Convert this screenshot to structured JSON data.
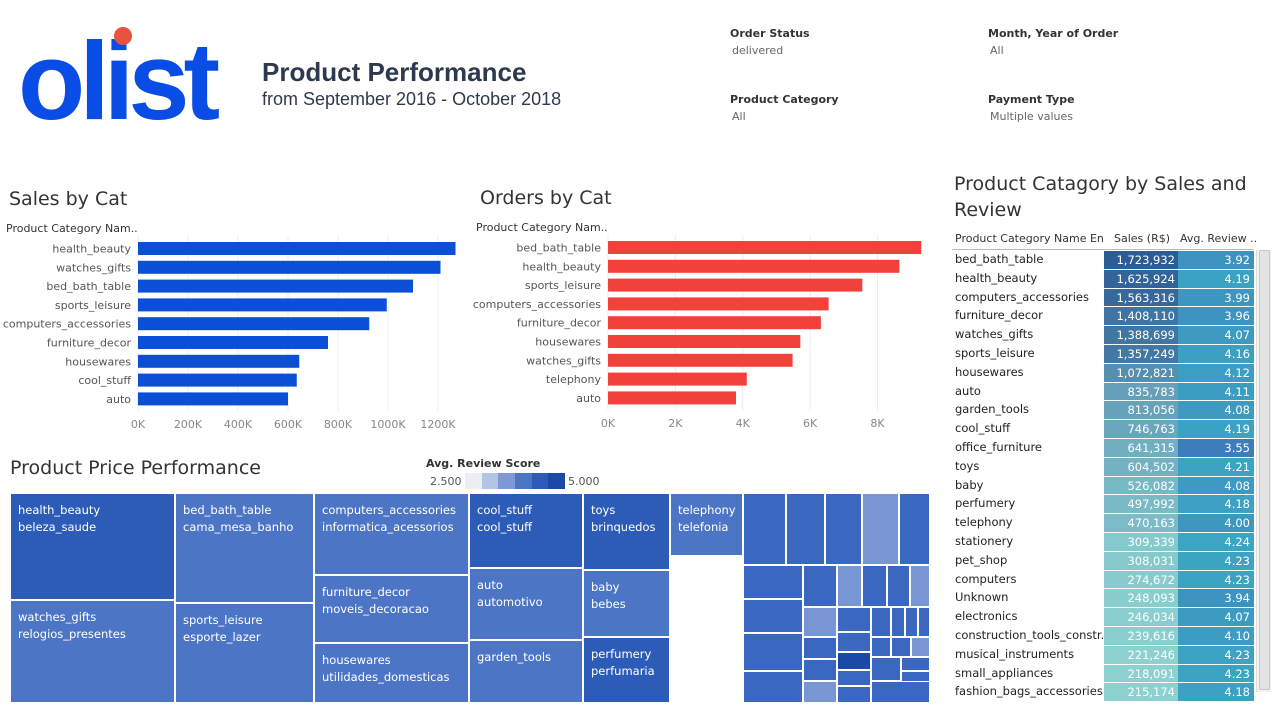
{
  "brand": {
    "logo_text": "olist",
    "logo_color": "#0a4de6",
    "dot_color": "#e8533f"
  },
  "header": {
    "title": "Product Performance",
    "subtitle": "from September 2016 - October 2018"
  },
  "filters": [
    {
      "label": "Order Status",
      "value": "delivered"
    },
    {
      "label": "Month, Year of Order",
      "value": "All"
    },
    {
      "label": "Product Category",
      "value": "All"
    },
    {
      "label": "Payment Type",
      "value": "Multiple values"
    }
  ],
  "chart_data": [
    {
      "type": "bar",
      "orientation": "horizontal",
      "title": "Sales by Cat",
      "ylabel": "Product Category Nam..",
      "categories": [
        "health_beauty",
        "watches_gifts",
        "bed_bath_table",
        "sports_leisure",
        "computers_accessories",
        "furniture_decor",
        "housewares",
        "cool_stuff",
        "auto"
      ],
      "values": [
        1270000,
        1210000,
        1100000,
        995000,
        925000,
        760000,
        645000,
        635000,
        600000
      ],
      "xlim": [
        0,
        1300000
      ],
      "ticks": [
        0,
        200000,
        400000,
        600000,
        800000,
        1000000,
        1200000
      ],
      "tick_labels": [
        "0K",
        "200K",
        "400K",
        "600K",
        "800K",
        "1000K",
        "1200K"
      ],
      "grid": true,
      "color": "#0a4fd6"
    },
    {
      "type": "bar",
      "orientation": "horizontal",
      "title": "Orders by Cat",
      "ylabel": "Product Category Nam..",
      "categories": [
        "bed_bath_table",
        "health_beauty",
        "sports_leisure",
        "computers_accessories",
        "furniture_decor",
        "housewares",
        "watches_gifts",
        "telephony",
        "auto"
      ],
      "values": [
        9300,
        8650,
        7550,
        6550,
        6320,
        5710,
        5480,
        4120,
        3800
      ],
      "xlim": [
        0,
        9500
      ],
      "ticks": [
        0,
        2000,
        4000,
        6000,
        8000
      ],
      "tick_labels": [
        "0K",
        "2K",
        "4K",
        "6K",
        "8K"
      ],
      "grid": true,
      "color": "#f2413a"
    },
    {
      "type": "treemap",
      "title": "Product Price Performance",
      "color_legend": {
        "title": "Avg. Review Score",
        "min": "2.500",
        "max": "5.000",
        "colors": [
          "#eceef2",
          "#b3c4e4",
          "#7e9ad6",
          "#4d75c6",
          "#2c5cb7",
          "#1c48a8"
        ]
      },
      "nodes": [
        {
          "en": "health_beauty",
          "pt": "beleza_saude",
          "review": 4.19
        },
        {
          "en": "watches_gifts",
          "pt": "relogios_presentes",
          "review": 4.07
        },
        {
          "en": "bed_bath_table",
          "pt": "cama_mesa_banho",
          "review": 3.92
        },
        {
          "en": "sports_leisure",
          "pt": "esporte_lazer",
          "review": 4.16
        },
        {
          "en": "computers_accessories",
          "pt": "informatica_acessorios",
          "review": 3.99
        },
        {
          "en": "furniture_decor",
          "pt": "moveis_decoracao",
          "review": 3.96
        },
        {
          "en": "housewares",
          "pt": "utilidades_domesticas",
          "review": 4.12
        },
        {
          "en": "cool_stuff",
          "pt": "cool_stuff",
          "review": 4.19
        },
        {
          "en": "auto",
          "pt": "automotivo",
          "review": 4.11
        },
        {
          "en": "garden_tools",
          "pt": "",
          "review": 4.08
        },
        {
          "en": "toys",
          "pt": "brinquedos",
          "review": 4.21
        },
        {
          "en": "baby",
          "pt": "bebes",
          "review": 4.08
        },
        {
          "en": "perfumery",
          "pt": "perfumaria",
          "review": 4.18
        },
        {
          "en": "telephony",
          "pt": "telefonia",
          "review": 4.0
        }
      ]
    },
    {
      "type": "table",
      "title": "Product Catagory by Sales and Review",
      "columns": [
        "Product Category Name En..",
        "Sales (R$)",
        "Avg. Review .."
      ],
      "rows": [
        [
          "bed_bath_table",
          "1,723,932",
          "3.92"
        ],
        [
          "health_beauty",
          "1,625,924",
          "4.19"
        ],
        [
          "computers_accessories",
          "1,563,316",
          "3.99"
        ],
        [
          "furniture_decor",
          "1,408,110",
          "3.96"
        ],
        [
          "watches_gifts",
          "1,388,699",
          "4.07"
        ],
        [
          "sports_leisure",
          "1,357,249",
          "4.16"
        ],
        [
          "housewares",
          "1,072,821",
          "4.12"
        ],
        [
          "auto",
          "835,783",
          "4.11"
        ],
        [
          "garden_tools",
          "813,056",
          "4.08"
        ],
        [
          "cool_stuff",
          "746,763",
          "4.19"
        ],
        [
          "office_furniture",
          "641,315",
          "3.55"
        ],
        [
          "toys",
          "604,502",
          "4.21"
        ],
        [
          "baby",
          "526,082",
          "4.08"
        ],
        [
          "perfumery",
          "497,992",
          "4.18"
        ],
        [
          "telephony",
          "470,163",
          "4.00"
        ],
        [
          "stationery",
          "309,339",
          "4.24"
        ],
        [
          "pet_shop",
          "308,031",
          "4.23"
        ],
        [
          "computers",
          "274,672",
          "4.23"
        ],
        [
          "Unknown",
          "248,093",
          "3.94"
        ],
        [
          "electronics",
          "246,034",
          "4.07"
        ],
        [
          "construction_tools_constr..",
          "239,616",
          "4.10"
        ],
        [
          "musical_instruments",
          "221,246",
          "4.23"
        ],
        [
          "small_appliances",
          "218,091",
          "4.23"
        ],
        [
          "fashion_bags_accessories",
          "215,174",
          "4.18"
        ]
      ]
    }
  ]
}
